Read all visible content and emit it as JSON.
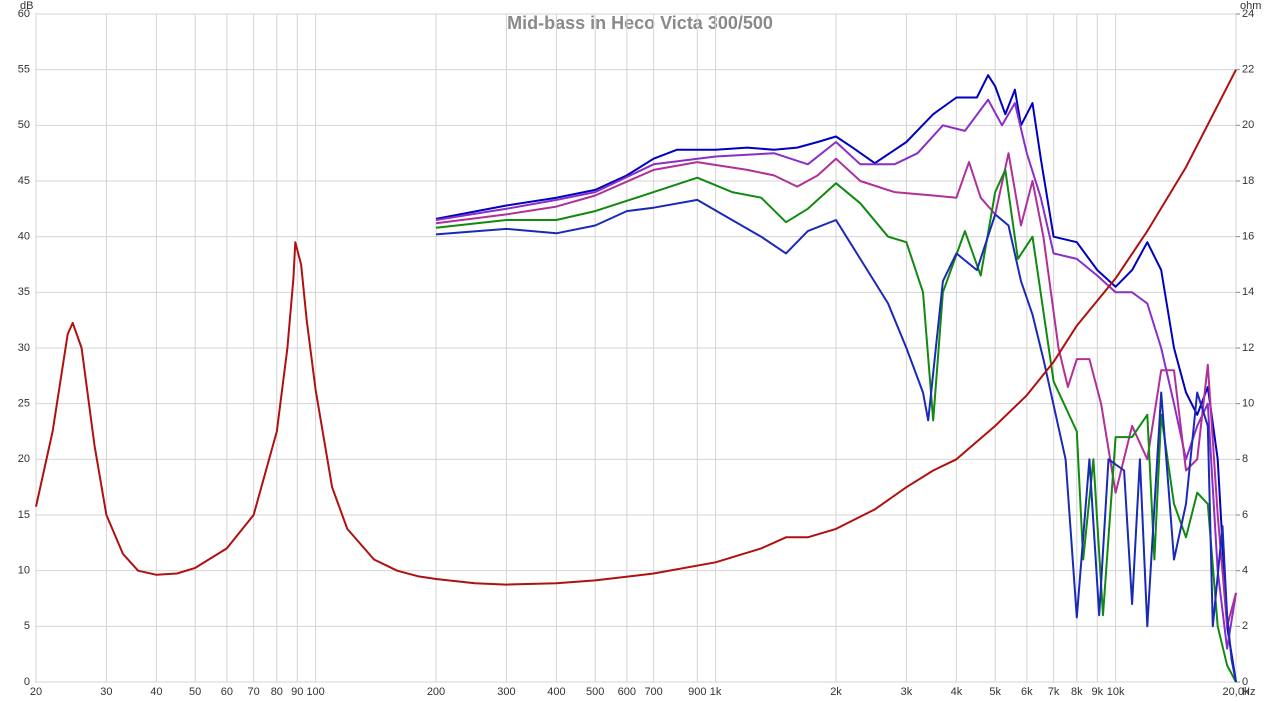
{
  "chart_data": {
    "type": "line",
    "title": "Mid-bass in Heco Victa 300/500",
    "y_label": "dB",
    "y2_label": "ohm",
    "x_label": "Hz",
    "xscale": "log",
    "xlim": [
      20,
      20000
    ],
    "xticks": [
      20,
      30,
      40,
      50,
      60,
      70,
      80,
      90,
      100,
      200,
      300,
      400,
      500,
      600,
      700,
      900,
      {
        "value": 1000,
        "label": "1k"
      },
      {
        "value": 2000,
        "label": "2k"
      },
      {
        "value": 3000,
        "label": "3k"
      },
      {
        "value": 4000,
        "label": "4k"
      },
      {
        "value": 5000,
        "label": "5k"
      },
      {
        "value": 6000,
        "label": "6k"
      },
      {
        "value": 7000,
        "label": "7k"
      },
      {
        "value": 8000,
        "label": "8k"
      },
      {
        "value": 9000,
        "label": "9k"
      },
      {
        "value": 10000,
        "label": "10k"
      },
      {
        "value": 20000,
        "label": "20,0k"
      }
    ],
    "ylim": [
      0,
      60
    ],
    "yticks": [
      0,
      5,
      10,
      15,
      20,
      25,
      30,
      35,
      40,
      45,
      50,
      55,
      60
    ],
    "y2lim": [
      0,
      24
    ],
    "y2ticks": [
      0,
      2,
      4,
      6,
      8,
      10,
      12,
      14,
      16,
      18,
      20,
      22,
      24
    ],
    "grid": true,
    "series": [
      {
        "color": "#0000c0",
        "x": [
          200,
          300,
          400,
          500,
          600,
          700,
          800,
          1000,
          1200,
          1400,
          1600,
          1800,
          2000,
          2200,
          2500,
          3000,
          3500,
          4000,
          4500,
          4800,
          5000,
          5300,
          5600,
          5800,
          6200,
          6500,
          7000,
          8000,
          9000,
          10000,
          11000,
          12000,
          13000,
          14000,
          15000,
          16000,
          17000,
          18000,
          19000,
          20000
        ],
        "values": [
          41.6,
          42.8,
          43.5,
          44.2,
          45.5,
          47.0,
          47.8,
          47.8,
          48,
          47.8,
          48.0,
          48.5,
          49.0,
          48,
          46.6,
          48.5,
          51,
          52.5,
          52.5,
          54.5,
          53.5,
          51,
          53.2,
          50,
          52,
          47,
          40,
          39.5,
          37,
          35.5,
          37,
          39.5,
          37,
          30,
          26,
          24,
          26.5,
          20,
          5,
          0
        ]
      },
      {
        "color": "#8a2ec8",
        "x": [
          200,
          300,
          400,
          500,
          700,
          1000,
          1400,
          1700,
          2000,
          2300,
          2800,
          3200,
          3700,
          4200,
          4800,
          5200,
          5600,
          6000,
          6500,
          7000,
          8000,
          9000,
          10000,
          11000,
          12000,
          13000,
          14000,
          15000,
          16000,
          17000,
          18000,
          19000,
          20000
        ],
        "values": [
          41.5,
          42.5,
          43.3,
          44,
          46.5,
          47.2,
          47.5,
          46.5,
          48.5,
          46.5,
          46.5,
          47.5,
          50,
          49.5,
          52.3,
          50,
          52,
          47.5,
          43.5,
          38.5,
          38,
          36.5,
          35,
          35,
          34,
          30,
          25,
          20,
          23,
          25,
          10,
          3,
          8
        ]
      },
      {
        "color": "#b0309a",
        "x": [
          200,
          300,
          400,
          500,
          700,
          900,
          1200,
          1400,
          1600,
          1800,
          2000,
          2300,
          2800,
          3500,
          4000,
          4300,
          4600,
          5000,
          5400,
          5800,
          6200,
          6600,
          7200,
          7600,
          8000,
          8600,
          9200,
          10000,
          11000,
          12000,
          13000,
          14000,
          15000,
          16000,
          17000,
          18000,
          19000,
          20000
        ],
        "values": [
          41.2,
          42,
          42.7,
          43.7,
          46,
          46.7,
          46,
          45.5,
          44.5,
          45.5,
          47,
          45,
          44,
          43.7,
          43.5,
          46.7,
          43.5,
          42,
          47.5,
          41,
          45,
          40,
          30,
          26.5,
          29,
          29,
          25,
          17,
          23,
          20,
          28,
          28,
          19,
          20,
          28.5,
          15,
          5,
          8
        ]
      },
      {
        "color": "#108a10",
        "x": [
          200,
          300,
          400,
          500,
          700,
          900,
          1100,
          1300,
          1500,
          1700,
          2000,
          2300,
          2700,
          3000,
          3300,
          3500,
          3700,
          4200,
          4600,
          5000,
          5300,
          5700,
          6200,
          7000,
          8000,
          8300,
          8800,
          9300,
          10000,
          11000,
          12000,
          12500,
          13000,
          14000,
          15000,
          16000,
          17000,
          18000,
          19000,
          20000
        ],
        "values": [
          40.8,
          41.5,
          41.5,
          42.3,
          44,
          45.3,
          44,
          43.5,
          41.3,
          42.5,
          44.8,
          43,
          40,
          39.5,
          35,
          23.5,
          35,
          40.5,
          36.5,
          44,
          46,
          38,
          40,
          27,
          22.5,
          11,
          20,
          6,
          22,
          22,
          24,
          11,
          24,
          16,
          13,
          17,
          16,
          5,
          1.5,
          0
        ]
      },
      {
        "color": "#1a2ab8",
        "x": [
          200,
          300,
          400,
          500,
          600,
          700,
          900,
          1100,
          1300,
          1500,
          1700,
          2000,
          2300,
          2700,
          3000,
          3300,
          3400,
          3700,
          4000,
          4500,
          5000,
          5400,
          5800,
          6200,
          6600,
          7500,
          8000,
          8600,
          9100,
          9600,
          10500,
          11000,
          11500,
          12000,
          13000,
          14000,
          15000,
          16000,
          17000,
          17500,
          18500,
          19000,
          19500,
          20000
        ],
        "values": [
          40.2,
          40.7,
          40.3,
          41,
          42.3,
          42.6,
          43.3,
          41.5,
          40,
          38.5,
          40.5,
          41.5,
          38,
          34,
          30,
          26,
          23.5,
          36,
          38.5,
          37,
          42,
          41,
          36,
          33,
          29,
          20,
          5.8,
          20,
          6,
          20,
          19,
          7,
          20,
          5,
          26,
          11,
          16,
          26,
          23,
          5,
          14,
          6,
          2,
          0
        ]
      },
      {
        "color": "#b01010",
        "axis": "y2",
        "x": [
          20,
          22,
          24,
          24.7,
          26,
          28,
          30,
          33,
          36,
          40,
          45,
          50,
          60,
          70,
          80,
          85,
          88,
          89,
          92,
          95,
          100,
          110,
          120,
          140,
          160,
          180,
          200,
          250,
          300,
          400,
          500,
          700,
          1000,
          1300,
          1500,
          1700,
          2000,
          2500,
          3000,
          3500,
          4000,
          5000,
          6000,
          7000,
          8000,
          10000,
          12000,
          15000,
          20000
        ],
        "values": [
          6.3,
          9.0,
          12.5,
          12.9,
          12.0,
          8.5,
          6.0,
          4.6,
          4.0,
          3.85,
          3.9,
          4.1,
          4.8,
          6.0,
          9.0,
          12.0,
          14.5,
          15.8,
          15.0,
          13.0,
          10.5,
          7.0,
          5.5,
          4.4,
          4.0,
          3.8,
          3.7,
          3.55,
          3.5,
          3.55,
          3.65,
          3.9,
          4.3,
          4.8,
          5.2,
          5.2,
          5.5,
          6.2,
          7.0,
          7.6,
          8.0,
          9.2,
          10.3,
          11.5,
          12.8,
          14.5,
          16.2,
          18.5,
          22
        ]
      }
    ]
  }
}
